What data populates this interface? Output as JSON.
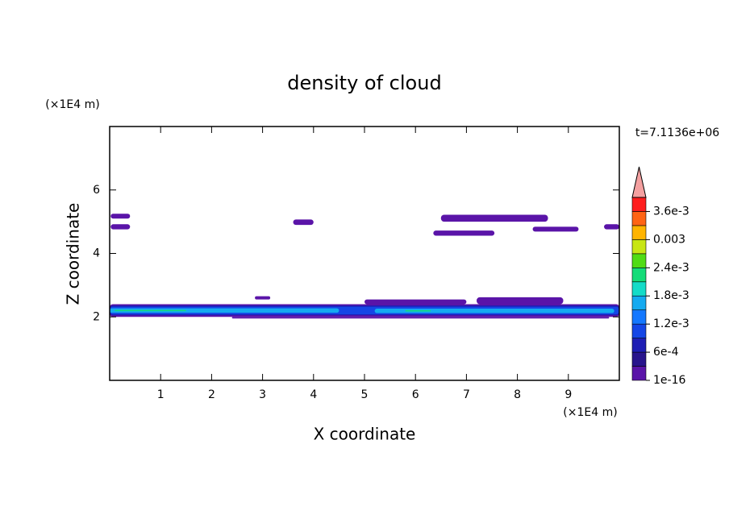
{
  "chart_data": {
    "type": "contour",
    "title": "density of cloud",
    "x_label": "X coordinate",
    "y_label": "Z coordinate",
    "x_unit": "(×1E4 m)",
    "y_unit": "(×1E4 m)",
    "annotation": "t=7.1136e+06",
    "xlim": [
      0,
      10
    ],
    "ylim": [
      0,
      8
    ],
    "xticks": [
      1,
      2,
      3,
      4,
      5,
      6,
      7,
      8,
      9
    ],
    "yticks": [
      2,
      4,
      6
    ],
    "colorbar": {
      "levels": [
        1e-16,
        0.0003,
        0.0006,
        0.0009,
        0.0012,
        0.0015,
        0.0018,
        0.0021,
        0.0024,
        0.0027,
        0.003,
        0.0033,
        0.0036,
        0.0039
      ],
      "colors": [
        "#5a14a8",
        "#28148c",
        "#1e1eb4",
        "#1446e6",
        "#1478ff",
        "#14aaf0",
        "#14dcc8",
        "#14dc78",
        "#50dc14",
        "#c8e614",
        "#ffb400",
        "#ff6414",
        "#ff1e1e"
      ],
      "extend_color": "#f4a0a0",
      "ticks": [
        {
          "value": 1e-16,
          "label": "1e-16"
        },
        {
          "value": 0.0006,
          "label": "6e-4"
        },
        {
          "value": 0.0012,
          "label": "1.2e-3"
        },
        {
          "value": 0.0018,
          "label": "1.8e-3"
        },
        {
          "value": 0.0024,
          "label": "2.4e-3"
        },
        {
          "value": 0.003,
          "label": "0.003"
        },
        {
          "value": 0.0036,
          "label": "3.6e-3"
        }
      ]
    },
    "regions": [
      {
        "x": [
          0.02,
          0.4
        ],
        "z": [
          5.1,
          5.25
        ],
        "value": 0.00015
      },
      {
        "x": [
          0.02,
          0.4
        ],
        "z": [
          4.76,
          4.92
        ],
        "value": 0.00015
      },
      {
        "x": [
          3.6,
          4.0
        ],
        "z": [
          4.9,
          5.07
        ],
        "value": 0.00015
      },
      {
        "x": [
          6.5,
          8.6
        ],
        "z": [
          5.0,
          5.22
        ],
        "value": 0.00015
      },
      {
        "x": [
          6.35,
          7.55
        ],
        "z": [
          4.56,
          4.72
        ],
        "value": 0.00015
      },
      {
        "x": [
          8.3,
          9.2
        ],
        "z": [
          4.69,
          4.84
        ],
        "value": 0.00015
      },
      {
        "x": [
          9.7,
          10
        ],
        "z": [
          4.76,
          4.92
        ],
        "value": 0.00015
      },
      {
        "x": [
          2.85,
          3.15
        ],
        "z": [
          2.55,
          2.65
        ],
        "value": 0.00015
      },
      {
        "x": [
          5.0,
          7.0
        ],
        "z": [
          2.4,
          2.55
        ],
        "value": 0.00015
      },
      {
        "x": [
          7.2,
          8.9
        ],
        "z": [
          2.4,
          2.62
        ],
        "value": 0.00015
      },
      {
        "x": [
          2.4,
          9.8
        ],
        "z": [
          1.95,
          2.0
        ],
        "value": 0.00015
      },
      {
        "x": [
          0,
          10
        ],
        "z": [
          2.0,
          2.4
        ],
        "value": 0.00015
      },
      {
        "x": [
          0,
          10
        ],
        "z": [
          2.05,
          2.36
        ],
        "value": 0.00075
      },
      {
        "x": [
          0,
          10
        ],
        "z": [
          2.08,
          2.32
        ],
        "value": 0.001
      },
      {
        "x": [
          0,
          4.5
        ],
        "z": [
          2.13,
          2.27
        ],
        "value": 0.0016
      },
      {
        "x": [
          5.2,
          9.9
        ],
        "z": [
          2.12,
          2.26
        ],
        "value": 0.0016
      },
      {
        "x": [
          0.1,
          1.5
        ],
        "z": [
          2.18,
          2.22
        ],
        "value": 0.0022
      },
      {
        "x": [
          5.8,
          6.3
        ],
        "z": [
          2.17,
          2.21
        ],
        "value": 0.0022
      }
    ]
  }
}
